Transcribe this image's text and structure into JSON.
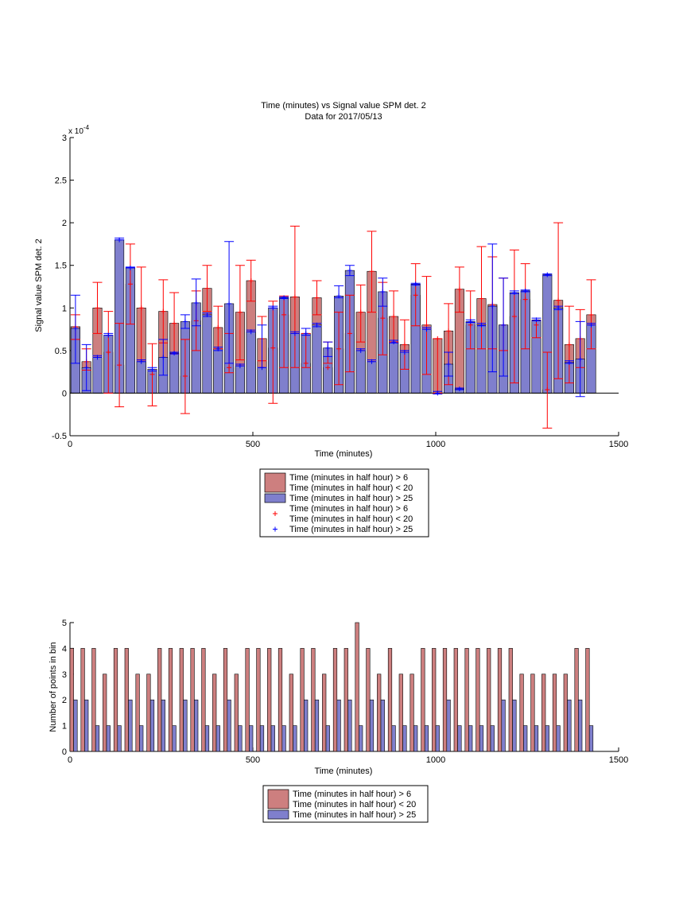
{
  "chart_data": [
    {
      "type": "bar",
      "title": "Time (minutes) vs Signal value SPM det. 2",
      "subtitle": "Data for 2017/05/13",
      "xlabel": "Time (minutes)",
      "ylabel": "Signal value SPM det. 2",
      "y_exponent_label": "x 10",
      "y_exponent": "-4",
      "xlim": [
        0,
        1500
      ],
      "ylim": [
        -0.5,
        3
      ],
      "xticks": [
        0,
        500,
        1000,
        1500
      ],
      "yticks": [
        -0.5,
        0,
        0.5,
        1,
        1.5,
        2,
        2.5,
        3
      ],
      "grid": false,
      "legend_position": "below plot",
      "legend": [
        "Time (minutes in half hour) > 6\nTime (minutes in half hour) < 20",
        "Time (minutes in half hour) > 25",
        "Time (minutes in half hour) > 6\nTime (minutes in half hour) < 20",
        "Time (minutes in half hour) > 25"
      ],
      "series": [
        {
          "color": "#cd7f7f",
          "err_color": "#ff0000",
          "x": [
            15,
            45,
            75,
            105,
            135,
            165,
            195,
            225,
            255,
            285,
            315,
            345,
            375,
            405,
            435,
            465,
            495,
            525,
            555,
            585,
            615,
            645,
            675,
            705,
            735,
            765,
            795,
            825,
            855,
            885,
            915,
            945,
            975,
            1005,
            1035,
            1065,
            1095,
            1125,
            1155,
            1185,
            1215,
            1245,
            1275,
            1305,
            1335,
            1365,
            1395,
            1425
          ],
          "values": [
            0.78,
            0.37,
            1.0,
            0.48,
            0.33,
            1.28,
            1.0,
            0.22,
            0.96,
            0.82,
            0.2,
            0.85,
            1.23,
            0.77,
            0.3,
            0.95,
            1.32,
            0.64,
            0.53,
            0.92,
            1.13,
            0.35,
            1.12,
            0.3,
            0.52,
            0.7,
            0.95,
            1.43,
            0.88,
            0.9,
            0.57,
            1.15,
            0.8,
            0.64,
            0.73,
            1.22,
            0.8,
            1.11,
            1.04,
            0.8,
            0.9,
            1.1,
            0.8,
            0.04,
            1.09,
            0.57,
            0.64,
            0.92
          ],
          "err_low": [
            0.63,
            0.27,
            0.7,
            0.0,
            -0.16,
            0.81,
            0.39,
            -0.15,
            0.59,
            0.46,
            -0.24,
            0.5,
            0.96,
            0.52,
            0.24,
            0.39,
            1.08,
            0.38,
            -0.12,
            0.3,
            0.3,
            0.3,
            0.92,
            0.35,
            0.1,
            0.25,
            0.6,
            0.95,
            0.45,
            0.6,
            0.28,
            0.79,
            0.22,
            0.0,
            0.1,
            0.95,
            0.52,
            0.52,
            0.52,
            0.5,
            0.12,
            0.52,
            0.65,
            -0.41,
            0.17,
            0.12,
            0.3,
            0.52
          ],
          "err_high": [
            0.92,
            0.52,
            1.3,
            0.96,
            0.82,
            1.75,
            1.48,
            0.58,
            1.33,
            1.18,
            0.63,
            1.2,
            1.5,
            1.02,
            0.7,
            1.5,
            1.56,
            0.9,
            1.08,
            1.14,
            1.96,
            0.7,
            1.32,
            0.6,
            0.95,
            1.15,
            1.27,
            1.9,
            1.3,
            1.2,
            0.86,
            1.52,
            1.37,
            0.64,
            1.05,
            1.48,
            1.2,
            1.72,
            1.6,
            1.35,
            1.68,
            1.52,
            0.85,
            0.48,
            2.0,
            1.02,
            0.98,
            1.33
          ]
        },
        {
          "color": "#7f7fcd",
          "err_color": "#0000ff",
          "x": [
            15,
            45,
            75,
            105,
            135,
            165,
            195,
            225,
            255,
            285,
            315,
            345,
            375,
            405,
            435,
            465,
            495,
            525,
            555,
            585,
            615,
            645,
            675,
            705,
            735,
            765,
            795,
            825,
            855,
            885,
            915,
            945,
            975,
            1005,
            1035,
            1065,
            1095,
            1125,
            1155,
            1185,
            1215,
            1245,
            1275,
            1305,
            1335,
            1365,
            1395,
            1425
          ],
          "values": [
            0.76,
            0.3,
            0.42,
            0.68,
            1.8,
            1.47,
            0.37,
            0.28,
            0.42,
            0.47,
            0.84,
            1.06,
            0.92,
            0.52,
            1.05,
            0.32,
            0.72,
            0.3,
            1.0,
            1.12,
            0.7,
            0.7,
            0.8,
            0.53,
            1.14,
            1.44,
            0.5,
            0.37,
            1.19,
            0.6,
            0.48,
            1.28,
            0.75,
            0.0,
            0.34,
            0.05,
            0.84,
            0.8,
            1.02,
            0.8,
            1.18,
            1.2,
            0.86,
            1.39,
            1.0,
            0.36,
            0.4,
            0.8
          ],
          "err_low": [
            0.35,
            0.03,
            0.42,
            0.68,
            1.8,
            1.47,
            0.37,
            0.26,
            0.21,
            0.46,
            0.76,
            0.79,
            0.9,
            0.5,
            0.35,
            0.32,
            0.72,
            0.3,
            1.0,
            1.11,
            0.7,
            0.68,
            0.78,
            0.43,
            1.12,
            1.38,
            0.5,
            0.37,
            1.02,
            0.59,
            0.48,
            1.27,
            0.75,
            -0.01,
            0.2,
            0.04,
            0.83,
            0.79,
            0.25,
            0.2,
            1.17,
            1.19,
            0.85,
            1.38,
            0.98,
            0.35,
            -0.04,
            0.8
          ],
          "err_high": [
            1.15,
            0.57,
            0.44,
            0.7,
            1.82,
            1.48,
            0.39,
            0.3,
            0.63,
            0.48,
            0.92,
            1.34,
            0.94,
            0.54,
            1.78,
            0.34,
            0.74,
            0.8,
            1.02,
            1.13,
            0.72,
            0.76,
            0.82,
            0.6,
            1.26,
            1.5,
            0.52,
            0.39,
            1.35,
            0.62,
            0.5,
            1.29,
            0.77,
            0.02,
            0.48,
            0.06,
            0.86,
            0.82,
            1.75,
            1.35,
            1.2,
            1.21,
            0.88,
            1.4,
            1.02,
            0.38,
            0.84,
            0.82
          ]
        }
      ]
    },
    {
      "type": "bar",
      "xlabel": "Time (minutes)",
      "ylabel": "Number of points in bin",
      "xlim": [
        0,
        1500
      ],
      "ylim": [
        0,
        5
      ],
      "xticks": [
        0,
        500,
        1000,
        1500
      ],
      "yticks": [
        0,
        1,
        2,
        3,
        4,
        5
      ],
      "grid": false,
      "legend_position": "below plot",
      "legend": [
        "Time (minutes in half hour) > 6\nTime (minutes in half hour) < 20",
        "Time (minutes in half hour) > 25"
      ],
      "series": [
        {
          "color": "#cd7f7f",
          "x": [
            5,
            35,
            65,
            95,
            125,
            155,
            185,
            215,
            245,
            275,
            305,
            335,
            365,
            395,
            425,
            455,
            485,
            515,
            545,
            575,
            605,
            635,
            665,
            695,
            725,
            755,
            785,
            815,
            845,
            875,
            905,
            935,
            965,
            995,
            1025,
            1055,
            1085,
            1115,
            1145,
            1175,
            1205,
            1235,
            1265,
            1295,
            1325,
            1355,
            1385,
            1415
          ],
          "values": [
            4,
            4,
            4,
            3,
            4,
            4,
            3,
            3,
            4,
            4,
            4,
            4,
            4,
            3,
            4,
            3,
            4,
            4,
            4,
            4,
            3,
            4,
            4,
            3,
            4,
            4,
            5,
            4,
            3,
            4,
            3,
            3,
            4,
            4,
            4,
            4,
            4,
            4,
            4,
            4,
            4,
            3,
            3,
            3,
            3,
            3,
            4,
            4
          ]
        },
        {
          "color": "#7f7fcd",
          "x": [
            15,
            45,
            75,
            105,
            135,
            165,
            195,
            225,
            255,
            285,
            315,
            345,
            375,
            405,
            435,
            465,
            495,
            525,
            555,
            585,
            615,
            645,
            675,
            705,
            735,
            765,
            795,
            825,
            855,
            885,
            915,
            945,
            975,
            1005,
            1035,
            1065,
            1095,
            1125,
            1155,
            1185,
            1215,
            1245,
            1275,
            1305,
            1335,
            1365,
            1395,
            1425
          ],
          "values": [
            2,
            2,
            1,
            1,
            1,
            2,
            1,
            2,
            2,
            1,
            2,
            2,
            1,
            1,
            2,
            1,
            1,
            1,
            1,
            1,
            1,
            2,
            2,
            1,
            2,
            2,
            1,
            2,
            2,
            1,
            1,
            1,
            1,
            1,
            2,
            1,
            1,
            1,
            1,
            2,
            2,
            1,
            1,
            1,
            1,
            2,
            2,
            1
          ]
        }
      ]
    }
  ]
}
